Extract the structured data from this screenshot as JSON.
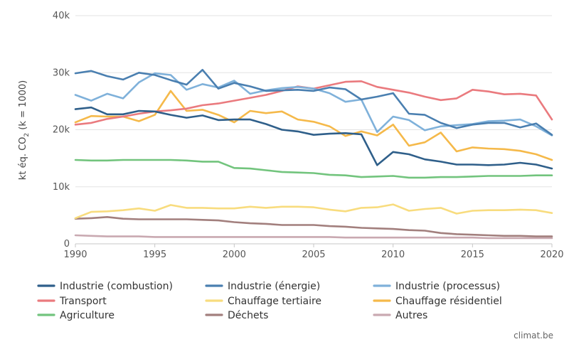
{
  "chart_data": {
    "type": "line",
    "ylabel_main": "kt éq. CO",
    "ylabel_sub": "2",
    "ylabel_tail": " (k = 1000)",
    "ylim": [
      0,
      40000
    ],
    "yticks": [
      0,
      10000,
      20000,
      30000,
      40000
    ],
    "ytick_labels": [
      "0",
      "10k",
      "20k",
      "30k",
      "40k"
    ],
    "xlim": [
      1990,
      2020
    ],
    "xticks": [
      1990,
      1995,
      2000,
      2005,
      2010,
      2015,
      2020
    ],
    "xtick_labels": [
      "1990",
      "1995",
      "2000",
      "2005",
      "2010",
      "2015",
      "2020"
    ],
    "grid": "horizontal",
    "legend_position": "bottom",
    "credit": "climat.be",
    "x": [
      1990,
      1991,
      1992,
      1993,
      1994,
      1995,
      1996,
      1997,
      1998,
      1999,
      2000,
      2001,
      2002,
      2003,
      2004,
      2005,
      2006,
      2007,
      2008,
      2009,
      2010,
      2011,
      2012,
      2013,
      2014,
      2015,
      2016,
      2017,
      2018,
      2019,
      2020
    ],
    "series": [
      {
        "name": "Industrie (combustion)",
        "color": "#2f5f8a",
        "values": [
          23600,
          23900,
          22700,
          22700,
          23300,
          23200,
          22600,
          22100,
          22500,
          21700,
          21800,
          21800,
          21000,
          20000,
          19700,
          19100,
          19300,
          19400,
          19200,
          13800,
          16100,
          15700,
          14800,
          14400,
          13900,
          13900,
          13800,
          13900,
          14200,
          13900,
          13200
        ]
      },
      {
        "name": "Industrie (énergie)",
        "color": "#4a7fb0",
        "values": [
          29900,
          30300,
          29400,
          28800,
          30000,
          29600,
          28700,
          27900,
          30500,
          27200,
          28200,
          27600,
          26800,
          26900,
          27000,
          26800,
          27400,
          27100,
          25300,
          25800,
          26400,
          22800,
          22600,
          21200,
          20300,
          20900,
          21200,
          21200,
          20400,
          21100,
          19100
        ]
      },
      {
        "name": "Industrie (processus)",
        "color": "#7fb1da",
        "values": [
          26100,
          25100,
          26300,
          25500,
          28300,
          29900,
          29600,
          27000,
          28000,
          27400,
          28600,
          26300,
          26900,
          27300,
          27500,
          27200,
          26400,
          24900,
          25300,
          19600,
          22300,
          21700,
          19900,
          20600,
          20800,
          21000,
          21500,
          21600,
          21800,
          20600,
          19000
        ]
      },
      {
        "name": "Transport",
        "color": "#ea7a7e",
        "values": [
          20900,
          21200,
          21900,
          22300,
          22800,
          23200,
          23400,
          23700,
          24300,
          24600,
          25100,
          25600,
          26100,
          26800,
          27600,
          27200,
          27800,
          28400,
          28500,
          27500,
          27000,
          26500,
          25800,
          25200,
          25500,
          27000,
          26700,
          26200,
          26300,
          26000,
          21800
        ]
      },
      {
        "name": "Chauffage tertiaire",
        "color": "#f8dc7e",
        "values": [
          4500,
          5600,
          5700,
          5900,
          6200,
          5800,
          6800,
          6300,
          6300,
          6200,
          6200,
          6500,
          6300,
          6500,
          6500,
          6400,
          6000,
          5700,
          6300,
          6400,
          6900,
          5800,
          6100,
          6300,
          5300,
          5800,
          5900,
          5900,
          6000,
          5900,
          5400
        ]
      },
      {
        "name": "Chauffage résidentiel",
        "color": "#f5b94a",
        "values": [
          21300,
          22400,
          22300,
          22300,
          21500,
          22600,
          26800,
          23300,
          23500,
          22600,
          21300,
          23300,
          22900,
          23200,
          21800,
          21400,
          20600,
          18900,
          19700,
          19000,
          20900,
          17200,
          17800,
          19500,
          16200,
          16900,
          16700,
          16600,
          16300,
          15700,
          14700
        ]
      },
      {
        "name": "Agriculture",
        "color": "#72c47d",
        "values": [
          14700,
          14600,
          14600,
          14700,
          14700,
          14700,
          14700,
          14600,
          14400,
          14400,
          13300,
          13200,
          12900,
          12600,
          12500,
          12400,
          12100,
          12000,
          11700,
          11800,
          11900,
          11600,
          11600,
          11700,
          11700,
          11800,
          11900,
          11900,
          11900,
          12000,
          12000
        ]
      },
      {
        "name": "Déchets",
        "color": "#a27f7d",
        "values": [
          4400,
          4500,
          4700,
          4400,
          4300,
          4300,
          4300,
          4300,
          4200,
          4100,
          3800,
          3600,
          3500,
          3300,
          3300,
          3300,
          3100,
          3000,
          2800,
          2700,
          2600,
          2400,
          2300,
          1900,
          1700,
          1600,
          1500,
          1400,
          1400,
          1300,
          1300
        ]
      },
      {
        "name": "Autres",
        "color": "#c9a9b1",
        "values": [
          1500,
          1400,
          1300,
          1300,
          1300,
          1200,
          1200,
          1200,
          1200,
          1200,
          1200,
          1200,
          1200,
          1200,
          1200,
          1200,
          1200,
          1100,
          1100,
          1100,
          1100,
          1100,
          1100,
          1100,
          1100,
          1100,
          1000,
          1000,
          1000,
          1000,
          1000
        ]
      }
    ]
  }
}
